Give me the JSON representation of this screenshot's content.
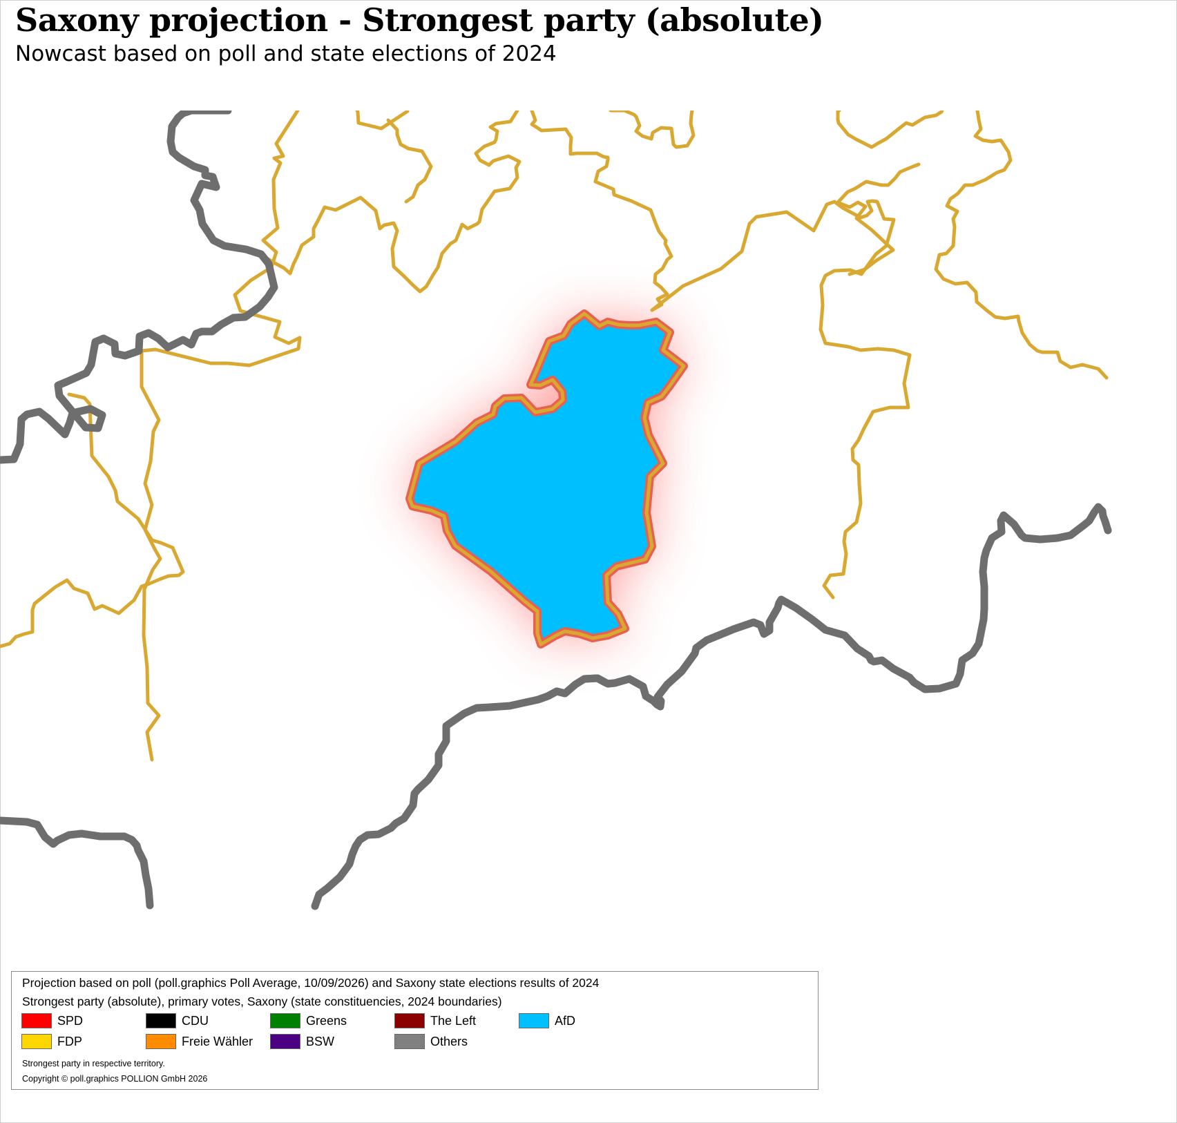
{
  "title": "Saxony projection - Strongest party (absolute)",
  "subtitle": "Nowcast based on poll and state elections of 2024",
  "map": {
    "highlighted_party": "AfD",
    "highlight_fill": "#00bfff",
    "constituency_border_color": "#d9a830",
    "state_border_color": "#6e6e6e",
    "highlight_glow_color": "#ff4d4d"
  },
  "legend": {
    "line1": "Projection based on poll (poll.graphics Poll Average, 10/09/2026) and Saxony state elections results of 2024",
    "line2": "Strongest party (absolute), primary votes, Saxony (state constituencies, 2024 boundaries)",
    "parties": [
      {
        "label": "SPD",
        "color": "#ff0000"
      },
      {
        "label": "CDU",
        "color": "#000000"
      },
      {
        "label": "Greens",
        "color": "#008000"
      },
      {
        "label": "The Left",
        "color": "#8b0000"
      },
      {
        "label": "AfD",
        "color": "#00bfff"
      },
      {
        "label": "FDP",
        "color": "#ffd700"
      },
      {
        "label": "Freie Wähler",
        "color": "#ff8c00"
      },
      {
        "label": "BSW",
        "color": "#4b0082"
      },
      {
        "label": "Others",
        "color": "#808080"
      }
    ],
    "note1": "Strongest party in respective territory.",
    "note2": "Copyright © poll.graphics POLLION GmbH 2026"
  }
}
